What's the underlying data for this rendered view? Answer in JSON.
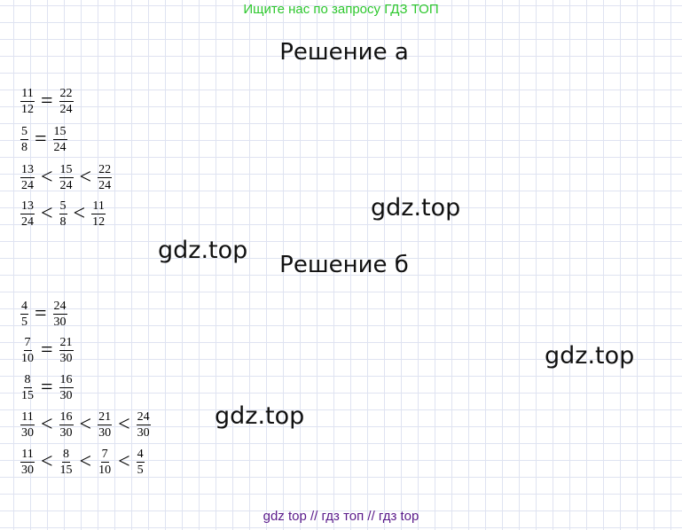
{
  "banners": {
    "top": "Ищите нас по запросу ГДЗ ТОП",
    "bottom": "gdz top  //  гдз топ  //  гдз top"
  },
  "sections": {
    "a": {
      "heading": "Решение а",
      "lines": [
        {
          "terms": [
            {
              "n": "11",
              "d": "12"
            },
            {
              "rel": "="
            },
            {
              "n": "22",
              "d": "24"
            }
          ]
        },
        {
          "terms": [
            {
              "n": "5",
              "d": "8"
            },
            {
              "rel": "="
            },
            {
              "n": "15",
              "d": "24"
            }
          ]
        },
        {
          "terms": [
            {
              "n": "13",
              "d": "24"
            },
            {
              "rel": "<"
            },
            {
              "n": "15",
              "d": "24"
            },
            {
              "rel": "<"
            },
            {
              "n": "22",
              "d": "24"
            }
          ]
        },
        {
          "terms": [
            {
              "n": "13",
              "d": "24"
            },
            {
              "rel": "<"
            },
            {
              "n": "5",
              "d": "8"
            },
            {
              "rel": "<"
            },
            {
              "n": "11",
              "d": "12"
            }
          ]
        }
      ]
    },
    "b": {
      "heading": "Решение б",
      "lines": [
        {
          "terms": [
            {
              "n": "4",
              "d": "5"
            },
            {
              "rel": "="
            },
            {
              "n": "24",
              "d": "30"
            }
          ]
        },
        {
          "terms": [
            {
              "n": "7",
              "d": "10"
            },
            {
              "rel": "="
            },
            {
              "n": "21",
              "d": "30"
            }
          ]
        },
        {
          "terms": [
            {
              "n": "8",
              "d": "15"
            },
            {
              "rel": "="
            },
            {
              "n": "16",
              "d": "30"
            }
          ]
        },
        {
          "terms": [
            {
              "n": "11",
              "d": "30"
            },
            {
              "rel": "<"
            },
            {
              "n": "16",
              "d": "30"
            },
            {
              "rel": "<"
            },
            {
              "n": "21",
              "d": "30"
            },
            {
              "rel": "<"
            },
            {
              "n": "24",
              "d": "30"
            }
          ]
        },
        {
          "terms": [
            {
              "n": "11",
              "d": "30"
            },
            {
              "rel": "<"
            },
            {
              "n": "8",
              "d": "15"
            },
            {
              "rel": "<"
            },
            {
              "n": "7",
              "d": "10"
            },
            {
              "rel": "<"
            },
            {
              "n": "4",
              "d": "5"
            }
          ]
        }
      ]
    }
  },
  "watermarks": [
    "gdz.top",
    "gdz.top",
    "gdz.top",
    "gdz.top"
  ]
}
